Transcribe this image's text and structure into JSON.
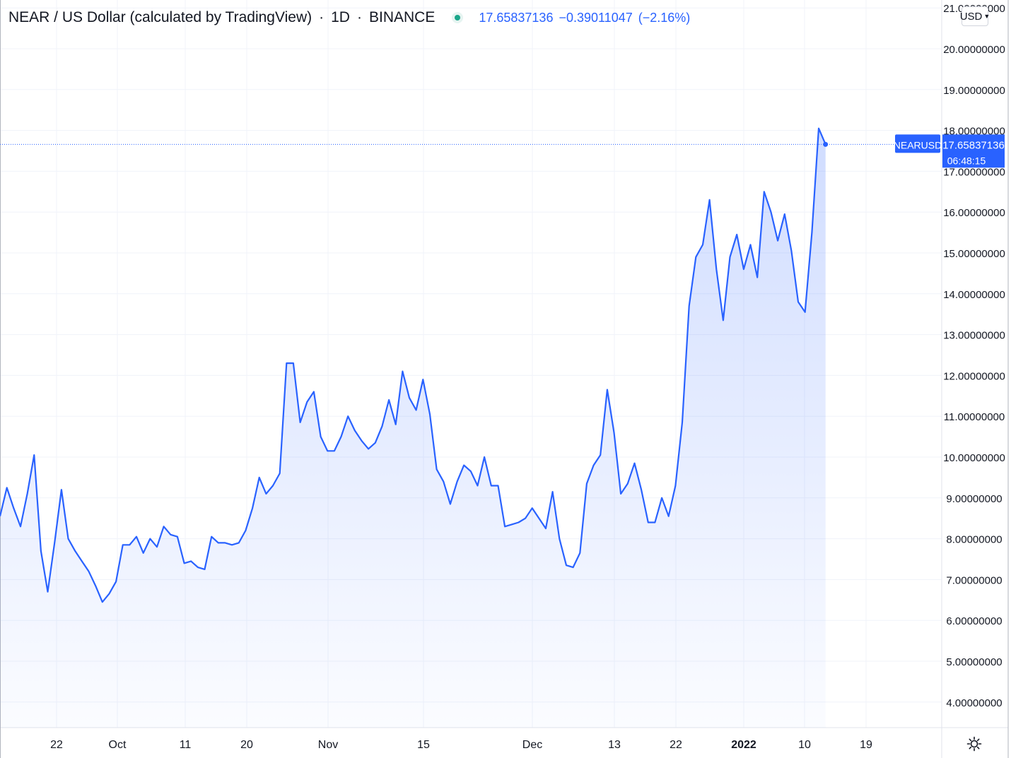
{
  "header": {
    "symbol_name": "NEAR / US Dollar (calculated by TradingView)",
    "interval": "1D",
    "exchange": "BINANCE",
    "last_price": "17.65837136",
    "change": "−0.39011047",
    "change_percent": "(−2.16%)"
  },
  "currency_selector": {
    "label": "USD"
  },
  "price_label": {
    "ticker": "NEARUSD",
    "price": "17.65837136",
    "countdown": "06:48:15"
  },
  "colors": {
    "line": "#2962ff",
    "price_tag": "#2962ff",
    "grid": "#f0f3fa",
    "axis_text": "#131722"
  },
  "icons": {
    "settings": "gear-icon",
    "status": "market-open-dot-icon",
    "dropdown": "chevron-down-icon"
  },
  "chart_data": {
    "type": "area",
    "series": [
      {
        "values": [
          8.55,
          9.25,
          8.75,
          8.3,
          9.1,
          10.05,
          7.7,
          6.7,
          7.9,
          9.2,
          8.0,
          7.7,
          7.45,
          7.2,
          6.85,
          6.45,
          6.65,
          6.95,
          7.85,
          7.85,
          8.05,
          7.65,
          8.0,
          7.8,
          8.3,
          8.1,
          8.05,
          7.4,
          7.45,
          7.3,
          7.25,
          8.05,
          7.9,
          7.9,
          7.85,
          7.9,
          8.2,
          8.75,
          9.5,
          9.1,
          9.3,
          9.6,
          12.3,
          12.3,
          10.85,
          11.35,
          11.6,
          10.5,
          10.15,
          10.15,
          10.5,
          11.0,
          10.65,
          10.4,
          10.2,
          10.35,
          10.75,
          11.4,
          10.8,
          12.1,
          11.45,
          11.15,
          11.9,
          11.05,
          9.7,
          9.4,
          8.85,
          9.4,
          9.8,
          9.65,
          9.3,
          10.0,
          9.3,
          9.3,
          8.3,
          8.35,
          8.4,
          8.5,
          8.75,
          8.5,
          8.25,
          9.15,
          8.0,
          7.35,
          7.3,
          7.65,
          9.35,
          9.8,
          10.05,
          11.65,
          10.6,
          9.1,
          9.35,
          9.85,
          9.2,
          8.4,
          8.4,
          9.0,
          8.55,
          9.3,
          10.85,
          13.7,
          14.9,
          15.2,
          16.3,
          14.6,
          13.35,
          14.9,
          15.45,
          14.6,
          15.2,
          14.4,
          16.5,
          16.0,
          15.3,
          15.95,
          15.05,
          13.8,
          13.55,
          15.5,
          18.05,
          17.66
        ]
      }
    ],
    "x_tick_labels": [
      "22",
      "Oct",
      "11",
      "20",
      "Nov",
      "15",
      "Dec",
      "13",
      "22",
      "2022",
      "10",
      "19"
    ],
    "y_tick_labels": [
      "4.00000000",
      "5.00000000",
      "6.00000000",
      "7.00000000",
      "8.00000000",
      "9.00000000",
      "10.00000000",
      "11.00000000",
      "12.00000000",
      "13.00000000",
      "14.00000000",
      "15.00000000",
      "16.00000000",
      "17.00000000",
      "18.00000000",
      "19.00000000",
      "20.00000000",
      "21.00000000"
    ],
    "ylim": [
      3.3,
      21.0
    ],
    "y_scale": "linear",
    "grid": true,
    "current_value": 17.65837136
  }
}
